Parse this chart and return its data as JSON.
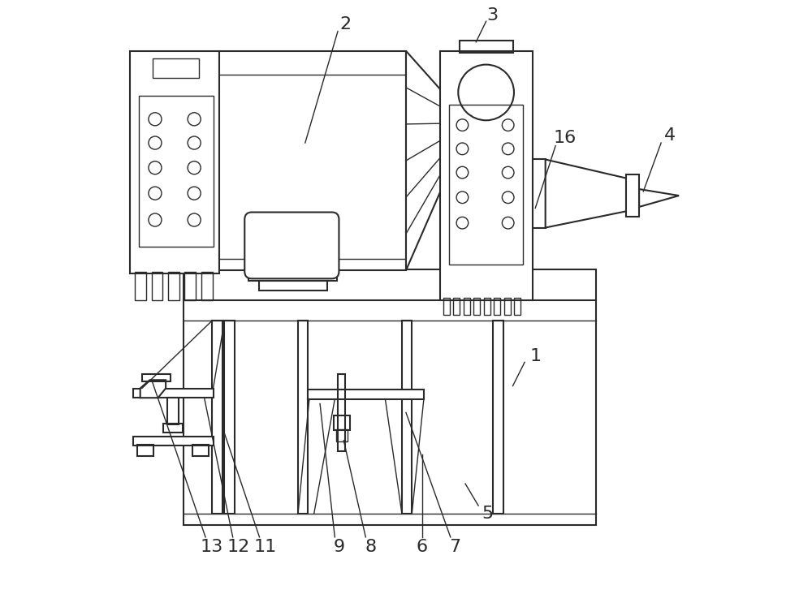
{
  "background_color": "#ffffff",
  "line_color": "#2a2a2a",
  "line_width": 1.5,
  "fig_width": 10.0,
  "fig_height": 7.32,
  "dpi": 100
}
